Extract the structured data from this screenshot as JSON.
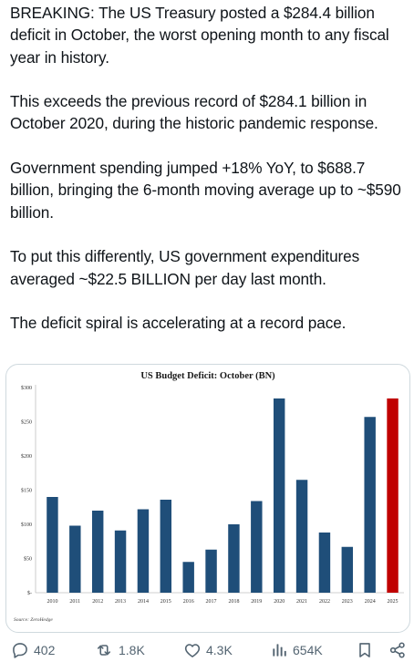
{
  "tweet": {
    "paragraphs": [
      "BREAKING: The US Treasury posted a $284.4 billion deficit in October, the worst opening month to any fiscal year in history.",
      "This exceeds the previous record of $284.1 billion in October 2020, during the historic pandemic response.",
      "Government spending jumped +18% YoY, to $688.7 billion, bringing the 6-month moving average up to ~$590 billion.",
      "To put this differently, US government expenditures averaged ~$22.5 BILLION per day last month.",
      "The deficit spiral is accelerating at a record pace."
    ]
  },
  "chart_data": {
    "type": "bar",
    "title": "US Budget Deficit: October (BN)",
    "xlabel": "",
    "ylabel": "",
    "categories": [
      "2010",
      "2011",
      "2012",
      "2013",
      "2014",
      "2015",
      "2016",
      "2017",
      "2018",
      "2019",
      "2020",
      "2021",
      "2022",
      "2023",
      "2024",
      "2025"
    ],
    "values": [
      140,
      98,
      120,
      91,
      122,
      136,
      45,
      63,
      100,
      134,
      284,
      165,
      88,
      67,
      257,
      284
    ],
    "ylim": [
      0,
      300
    ],
    "yticks": [
      0,
      50,
      100,
      150,
      200,
      250,
      300
    ],
    "ytick_labels": [
      "$-",
      "$50",
      "$100",
      "$150",
      "$200",
      "$250",
      "$300"
    ],
    "grid": false,
    "bar_color": "#1f4e79",
    "highlight_color": "#c00000",
    "highlight_index": 15,
    "source": "Source: ZeroHedge"
  },
  "actions": {
    "reply_count": "402",
    "retweet_count": "1.8K",
    "like_count": "4.3K",
    "view_count": "654K"
  },
  "colors": {
    "text": "#0f1419",
    "muted": "#536471",
    "card_border": "#cfd9de"
  }
}
